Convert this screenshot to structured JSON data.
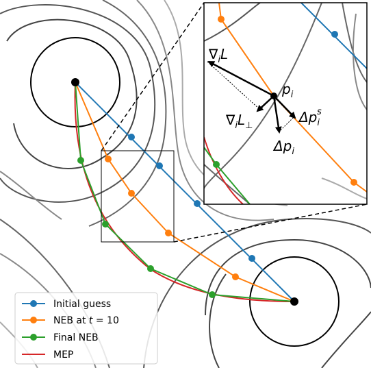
{
  "legend": {
    "items": [
      {
        "label": "Initial guess",
        "color": "#1f77b4"
      },
      {
        "label_prefix": "NEB at ",
        "label_var": "t",
        "label_suffix": " = 10",
        "color": "#ff7f0e"
      },
      {
        "label": "Final NEB",
        "color": "#2ca02c"
      },
      {
        "label": "MEP",
        "color": "#d62728"
      }
    ]
  },
  "inset_labels": {
    "grad_L": {
      "nabla": "∇",
      "sub": "i",
      "main": "L"
    },
    "grad_L_perp": {
      "nabla": "∇",
      "sub": "i",
      "main": "L",
      "sub2": "⊥"
    },
    "p_i": {
      "main": "p",
      "sub": "i"
    },
    "delta_p_i": {
      "main": "Δp",
      "sub": "i"
    },
    "delta_p_i_s": {
      "main": "Δp",
      "sub": "i",
      "sup": "s"
    }
  },
  "colors": {
    "initial": "#1f77b4",
    "neb": "#ff7f0e",
    "final": "#2ca02c",
    "mep": "#d62728",
    "contour_dark": "#555555",
    "contour_light": "#aaaaaa"
  }
}
